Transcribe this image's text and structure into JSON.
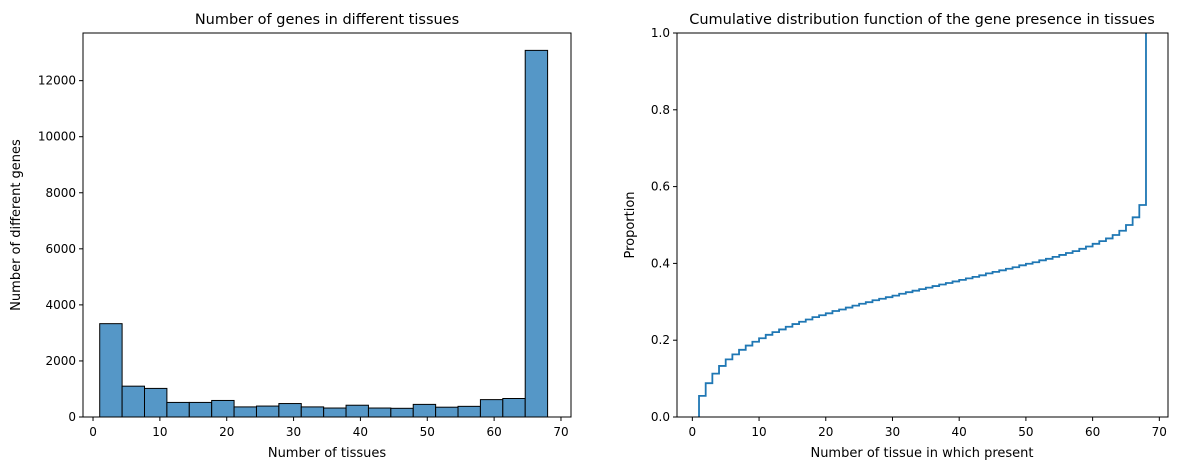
{
  "chart_data": [
    {
      "type": "bar",
      "subtype": "histogram",
      "title": "Number of genes in different tissues",
      "xlabel": "Number of tissues",
      "ylabel": "Number of different genes",
      "xlim": [
        -1.5,
        71.5
      ],
      "ylim": [
        0,
        13700
      ],
      "xticks": [
        0,
        10,
        20,
        30,
        40,
        50,
        60,
        70
      ],
      "yticks": [
        0,
        2000,
        4000,
        6000,
        8000,
        10000,
        12000
      ],
      "bin_start": 1,
      "bin_width": 3.35,
      "values": [
        3330,
        1100,
        1020,
        520,
        520,
        590,
        360,
        390,
        480,
        360,
        320,
        420,
        320,
        310,
        450,
        350,
        380,
        620,
        660,
        13080
      ],
      "bar_color": "#5597c7",
      "edge_color": "#000000",
      "grid": false
    },
    {
      "type": "line",
      "subtype": "ecdf-step",
      "title": "Cumulative distribution function of the gene presence in tissues",
      "xlabel": "Number of tissue in which present",
      "ylabel": "Proportion",
      "xlim": [
        -2.3,
        71.3
      ],
      "ylim": [
        0,
        1
      ],
      "xticks": [
        0,
        10,
        20,
        30,
        40,
        50,
        60,
        70
      ],
      "yticks": [
        0.0,
        0.2,
        0.4,
        0.6,
        0.8,
        1.0
      ],
      "x": [
        1,
        2,
        3,
        4,
        5,
        6,
        7,
        8,
        9,
        10,
        11,
        12,
        13,
        14,
        15,
        16,
        17,
        18,
        19,
        20,
        21,
        22,
        23,
        24,
        25,
        26,
        27,
        28,
        29,
        30,
        31,
        32,
        33,
        34,
        35,
        36,
        37,
        38,
        39,
        40,
        41,
        42,
        43,
        44,
        45,
        46,
        47,
        48,
        49,
        50,
        51,
        52,
        53,
        54,
        55,
        56,
        57,
        58,
        59,
        60,
        61,
        62,
        63,
        64,
        65,
        66,
        67,
        68
      ],
      "y": [
        0.055,
        0.088,
        0.113,
        0.133,
        0.15,
        0.163,
        0.175,
        0.186,
        0.196,
        0.205,
        0.214,
        0.221,
        0.228,
        0.235,
        0.242,
        0.248,
        0.254,
        0.26,
        0.265,
        0.27,
        0.276,
        0.28,
        0.285,
        0.29,
        0.295,
        0.299,
        0.304,
        0.308,
        0.312,
        0.316,
        0.321,
        0.325,
        0.329,
        0.333,
        0.337,
        0.341,
        0.345,
        0.349,
        0.353,
        0.357,
        0.361,
        0.365,
        0.369,
        0.374,
        0.378,
        0.382,
        0.386,
        0.39,
        0.395,
        0.399,
        0.403,
        0.408,
        0.412,
        0.417,
        0.422,
        0.427,
        0.432,
        0.438,
        0.444,
        0.451,
        0.458,
        0.465,
        0.474,
        0.485,
        0.5,
        0.52,
        0.552,
        1.0
      ],
      "line_color": "#1f77b4",
      "grid": false
    }
  ]
}
